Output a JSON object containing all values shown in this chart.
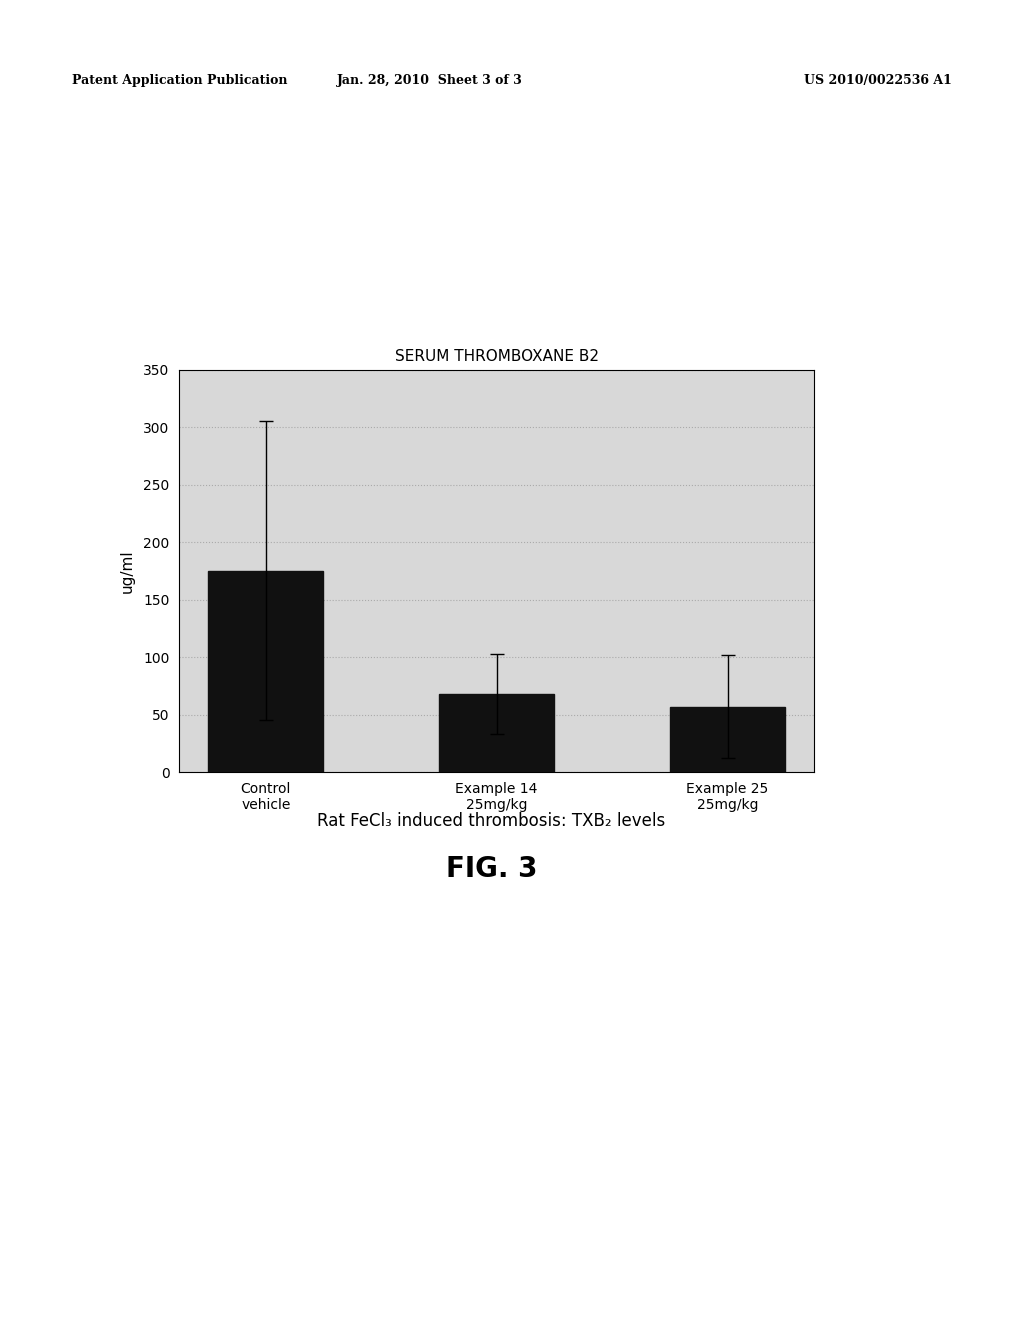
{
  "title": "SERUM THROMBOXANE B2",
  "ylabel": "ug/ml",
  "categories": [
    "Control\nvehicle",
    "Example 14\n25mg/kg",
    "Example 25\n25mg/kg"
  ],
  "values": [
    175,
    68,
    57
  ],
  "errors": [
    130,
    35,
    45
  ],
  "bar_color": "#111111",
  "bar_width": 0.5,
  "ylim": [
    0,
    350
  ],
  "yticks": [
    0,
    50,
    100,
    150,
    200,
    250,
    300,
    350
  ],
  "grid_color": "#aaaaaa",
  "background_color": "#d8d8d8",
  "figure_bg": "#ffffff",
  "header_left": "Patent Application Publication",
  "header_center": "Jan. 28, 2010  Sheet 3 of 3",
  "header_right": "US 2010/0022536 A1",
  "caption": "Rat FeCl₃ induced thrombosis: TXB₂ levels",
  "fig_label": "FIG. 3",
  "title_fontsize": 11,
  "axis_label_fontsize": 11,
  "tick_fontsize": 10,
  "caption_fontsize": 12,
  "fig_label_fontsize": 20,
  "header_fontsize": 9
}
